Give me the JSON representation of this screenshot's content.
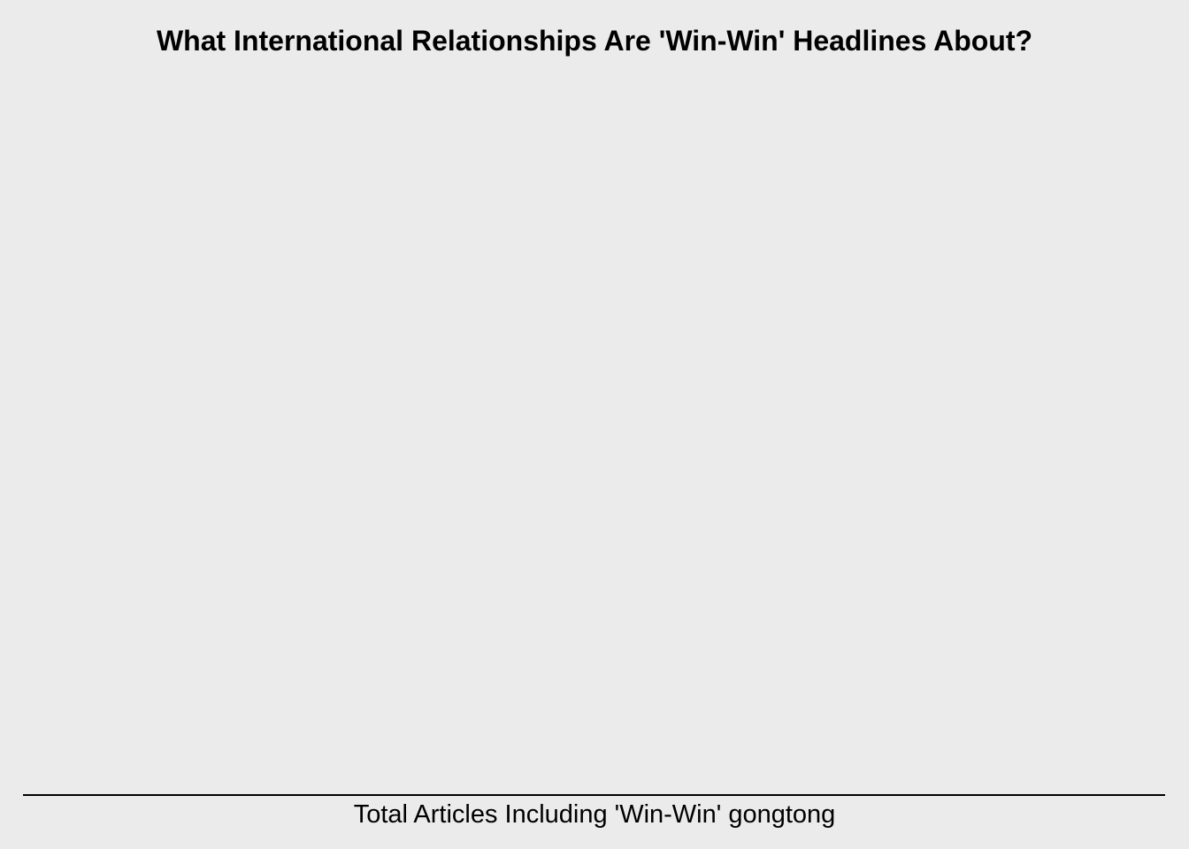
{
  "chart_data": {
    "type": "bar",
    "title": "What International Relationships Are 'Win-Win' Headlines About?",
    "xlabel": "Total Articles Including 'Win-Win' gongtong",
    "ylabel": "",
    "categories": [],
    "values": [],
    "grid": false,
    "background_color": "#ebebeb",
    "axis_color": "#000000"
  }
}
